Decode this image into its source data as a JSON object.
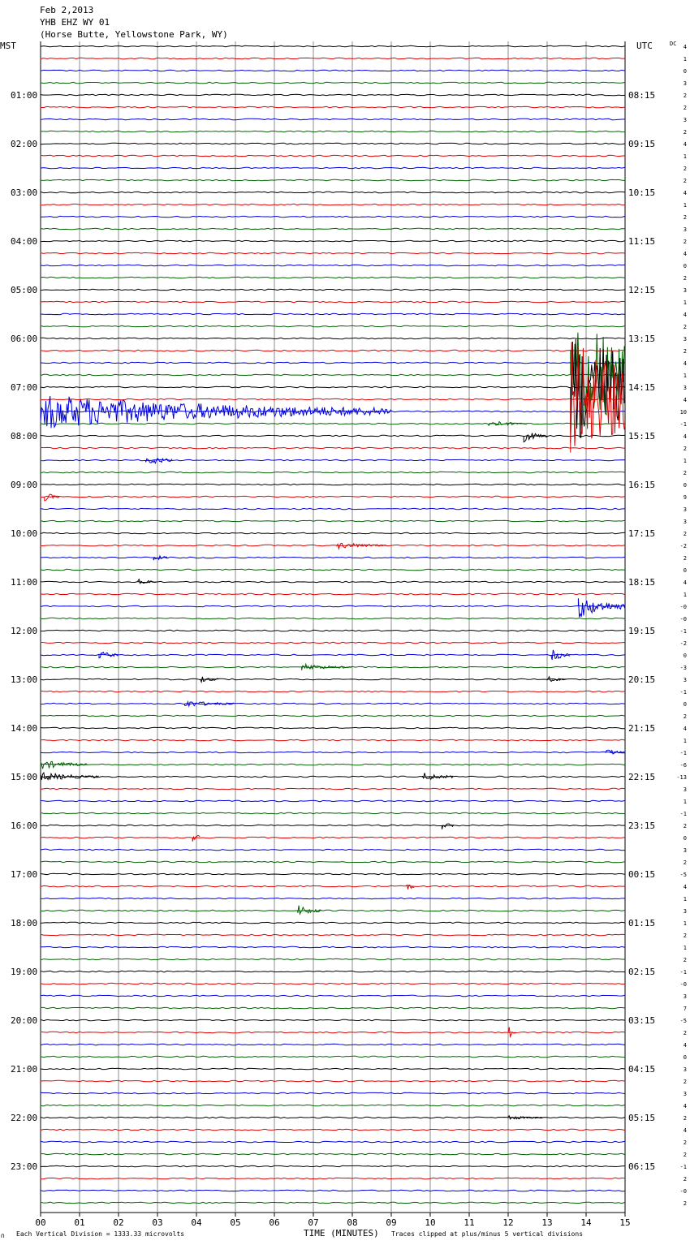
{
  "header": {
    "date": "Feb 2,2013",
    "station": "YHB EHZ WY 01",
    "location": "(Horse Butte, Yellowstone Park, WY)"
  },
  "labels": {
    "left_tz": "MST",
    "right_tz": "UTC",
    "dc": "DC",
    "xlabel": "TIME (MINUTES)",
    "scale_note": "Each Vertical Division = 1333.33 microvolts",
    "clip_note": "Traces clipped at plus/minus 5 vertical divisions",
    "corner_mark": "∩"
  },
  "chart_data": {
    "type": "line",
    "subtype": "helicorder",
    "x": {
      "min": 0,
      "max": 15,
      "unit": "minutes",
      "ticks": [
        "00",
        "01",
        "02",
        "03",
        "04",
        "05",
        "06",
        "07",
        "08",
        "09",
        "10",
        "11",
        "12",
        "13",
        "14",
        "15"
      ]
    },
    "rows_per_hour": 4,
    "row_minutes": 15,
    "colors": [
      "#000000",
      "#e00000",
      "#0000d8",
      "#006400"
    ],
    "grid_color": "#8c8c8c",
    "left_hour_labels": [
      "01:00",
      "02:00",
      "03:00",
      "04:00",
      "05:00",
      "06:00",
      "07:00",
      "08:00",
      "09:00",
      "10:00",
      "11:00",
      "12:00",
      "13:00",
      "14:00",
      "15:00",
      "16:00",
      "17:00",
      "18:00",
      "19:00",
      "20:00",
      "21:00",
      "22:00",
      "23:00"
    ],
    "right_hour_labels": [
      "08:15",
      "09:15",
      "10:15",
      "11:15",
      "12:15",
      "13:15",
      "14:15",
      "15:15",
      "16:15",
      "17:15",
      "18:15",
      "19:15",
      "20:15",
      "21:15",
      "22:15",
      "23:15",
      "00:15",
      "01:15",
      "02:15",
      "03:15",
      "04:15",
      "05:15",
      "06:15"
    ],
    "dc_offsets": [
      "4",
      "1",
      "0",
      "3",
      "2",
      "2",
      "3",
      "2",
      "4",
      "1",
      "2",
      "2",
      "4",
      "1",
      "2",
      "3",
      "2",
      "4",
      "0",
      "2",
      "3",
      "1",
      "4",
      "2",
      "3",
      "2",
      "4",
      "1",
      "3",
      "4",
      "10",
      "-1",
      "4",
      "2",
      "1",
      "2",
      "0",
      "9",
      "3",
      "3",
      "2",
      "-2",
      "2",
      "0",
      "4",
      "1",
      "-0",
      "-0",
      "-1",
      "-2",
      "0",
      "-3",
      "3",
      "-1",
      "0",
      "2",
      "4",
      "1",
      "-1",
      "-6",
      "-13",
      "3",
      "1",
      "-1",
      "2",
      "0",
      "3",
      "2",
      "-5",
      "4",
      "1",
      "3",
      "1",
      "2",
      "1",
      "2",
      "-1",
      "-0",
      "3",
      "7",
      "-5",
      "2",
      "4",
      "0",
      "3",
      "2",
      "3",
      "4",
      "2",
      "4",
      "2",
      "2",
      "-1",
      "2",
      "-0",
      "2"
    ],
    "events": [
      {
        "row": 27,
        "start_min": 13.6,
        "end_min": 15.0,
        "amp_div": 5,
        "note": "clipped"
      },
      {
        "row": 28,
        "start_min": 13.6,
        "end_min": 15.0,
        "amp_div": 5,
        "note": "clipped"
      },
      {
        "row": 29,
        "start_min": 13.6,
        "end_min": 15.0,
        "amp_div": 5,
        "note": "clipped"
      },
      {
        "row": 30,
        "start_min": 0.0,
        "end_min": 9.0,
        "amp_div": 1.5
      },
      {
        "row": 31,
        "start_min": 11.5,
        "end_min": 12.5,
        "amp_div": 0.3
      },
      {
        "row": 32,
        "start_min": 12.4,
        "end_min": 13.0,
        "amp_div": 0.5
      },
      {
        "row": 34,
        "start_min": 2.7,
        "end_min": 3.4,
        "amp_div": 0.5
      },
      {
        "row": 37,
        "start_min": 0.1,
        "end_min": 0.5,
        "amp_div": 0.4
      },
      {
        "row": 41,
        "start_min": 7.6,
        "end_min": 8.9,
        "amp_div": 0.3
      },
      {
        "row": 42,
        "start_min": 2.9,
        "end_min": 3.3,
        "amp_div": 0.3
      },
      {
        "row": 44,
        "start_min": 2.5,
        "end_min": 3.0,
        "amp_div": 0.3
      },
      {
        "row": 46,
        "start_min": 13.8,
        "end_min": 15.0,
        "amp_div": 1.0
      },
      {
        "row": 50,
        "start_min": 1.5,
        "end_min": 2.0,
        "amp_div": 0.4
      },
      {
        "row": 50,
        "start_min": 13.1,
        "end_min": 13.6,
        "amp_div": 0.6
      },
      {
        "row": 51,
        "start_min": 6.7,
        "end_min": 8.0,
        "amp_div": 0.3
      },
      {
        "row": 52,
        "start_min": 4.1,
        "end_min": 4.6,
        "amp_div": 0.3
      },
      {
        "row": 52,
        "start_min": 13.0,
        "end_min": 13.5,
        "amp_div": 0.3
      },
      {
        "row": 54,
        "start_min": 3.7,
        "end_min": 5.0,
        "amp_div": 0.3
      },
      {
        "row": 58,
        "start_min": 14.5,
        "end_min": 15.0,
        "amp_div": 0.3
      },
      {
        "row": 59,
        "start_min": 0.0,
        "end_min": 1.2,
        "amp_div": 0.4
      },
      {
        "row": 60,
        "start_min": 0.0,
        "end_min": 1.5,
        "amp_div": 0.4
      },
      {
        "row": 60,
        "start_min": 9.8,
        "end_min": 10.6,
        "amp_div": 0.4
      },
      {
        "row": 64,
        "start_min": 10.3,
        "end_min": 10.6,
        "amp_div": 0.4
      },
      {
        "row": 65,
        "start_min": 3.9,
        "end_min": 4.1,
        "amp_div": 0.8
      },
      {
        "row": 69,
        "start_min": 9.4,
        "end_min": 9.6,
        "amp_div": 0.6
      },
      {
        "row": 71,
        "start_min": 6.6,
        "end_min": 7.2,
        "amp_div": 0.5
      },
      {
        "row": 81,
        "start_min": 12.0,
        "end_min": 12.2,
        "amp_div": 0.8
      },
      {
        "row": 88,
        "start_min": 12.0,
        "end_min": 12.9,
        "amp_div": 0.2
      }
    ]
  }
}
